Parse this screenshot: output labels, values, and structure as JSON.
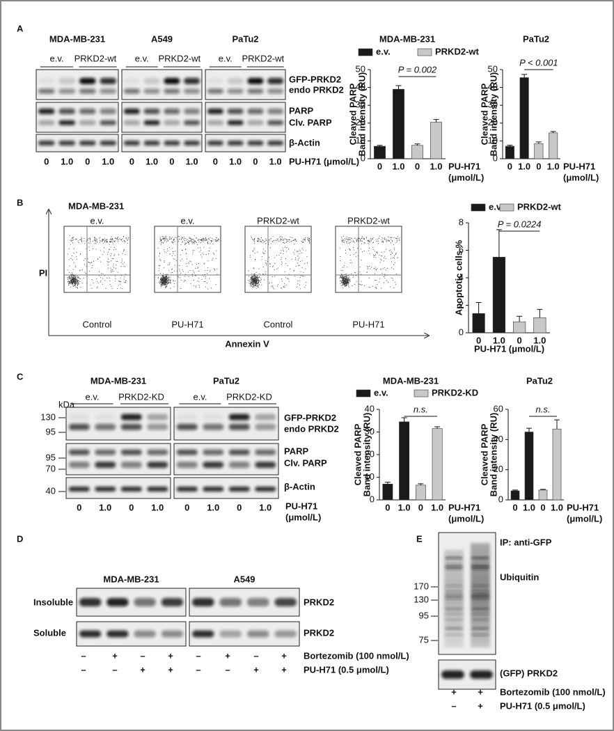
{
  "panels": {
    "A": {
      "label": "A",
      "cell_lines": [
        "MDA-MB-231",
        "A549",
        "PaTu2"
      ],
      "groups": [
        "e.v.",
        "PRKD2-wt"
      ],
      "bands": [
        "GFP-PRKD2",
        "endo PRKD2",
        "PARP",
        "Clv. PARP",
        "β-Actin"
      ],
      "lanes": [
        "0",
        "1.0",
        "0",
        "1.0"
      ],
      "treatment": "PU-H71 (μmol/L)"
    },
    "B": {
      "label": "B",
      "cell_line": "MDA-MB-231",
      "headers": [
        "e.v.",
        "e.v.",
        "PRKD2-wt",
        "PRKD2-wt"
      ],
      "conditions": [
        "Control",
        "PU-H71",
        "Control",
        "PU-H71"
      ],
      "y_axis": "PI",
      "x_axis": "Annexin V"
    },
    "C": {
      "label": "C",
      "cell_lines": [
        "MDA-MB-231",
        "PaTu2"
      ],
      "groups": [
        "e.v.",
        "PRKD2-KD"
      ],
      "kda": "kDa",
      "markers": [
        "130",
        "95",
        "95",
        "70",
        "40"
      ],
      "bands": [
        "GFP-PRKD2",
        "endo PRKD2",
        "PARP",
        "Clv. PARP",
        "β-Actin"
      ],
      "lanes": [
        "0",
        "1.0",
        "0",
        "1.0"
      ],
      "treatment": [
        "PU-H71",
        "(μmol/L)"
      ]
    },
    "D": {
      "label": "D",
      "cell_lines": [
        "MDA-MB-231",
        "A549"
      ],
      "fractions": [
        "Insoluble",
        "Soluble"
      ],
      "band": "PRKD2",
      "bortezomib": [
        "–",
        "+",
        "–",
        "+",
        "–",
        "+",
        "–",
        "+"
      ],
      "pu_h71": [
        "–",
        "–",
        "+",
        "+",
        "–",
        "–",
        "+",
        "+"
      ],
      "treatments": [
        "Bortezomib (100 nmol/L)",
        "PU-H71 (0.5 μmol/L)"
      ]
    },
    "E": {
      "label": "E",
      "markers": [
        "170",
        "130",
        "95",
        "75"
      ],
      "ip": "IP: anti-GFP",
      "blot": "Ubiquitin",
      "band": "(GFP) PRKD2",
      "bortezomib": [
        "+",
        "+"
      ],
      "pu_h71": [
        "–",
        "+"
      ],
      "treatments": [
        "Bortezomib (100 nmol/L)",
        "PU-H71 (0.5 μmol/L)"
      ]
    }
  },
  "chart_data": [
    {
      "type": "bar",
      "title": "MDA-MB-231",
      "categories": [
        "0",
        "1.0",
        "0",
        "1.0"
      ],
      "series": [
        {
          "name": "e.v.",
          "color": "#1a1a1a",
          "values": [
            7,
            39,
            null,
            null
          ],
          "errors": [
            0.5,
            2,
            null,
            null
          ]
        },
        {
          "name": "PRKD2-wt",
          "color": "#c8c8c8",
          "values": [
            null,
            null,
            7.5,
            20.5
          ],
          "errors": [
            null,
            null,
            0.8,
            1.5
          ]
        }
      ],
      "ylim": [
        0,
        50
      ],
      "yticks": [
        0,
        10,
        20,
        30,
        40,
        50
      ],
      "y_label": [
        "Cleaved PARP",
        "Band intensity (RU)"
      ],
      "x_label": [
        "PU-H71",
        "(μmol/L)"
      ],
      "annotation": "P = 0.002"
    },
    {
      "type": "bar",
      "title": "PaTu2",
      "categories": [
        "0",
        "1.0",
        "0",
        "1.0"
      ],
      "series": [
        {
          "color": "#1a1a1a",
          "values": [
            7,
            45.5,
            null,
            null
          ],
          "errors": [
            0.6,
            1.8,
            null,
            null
          ]
        },
        {
          "color": "#c8c8c8",
          "values": [
            null,
            null,
            8.5,
            14.5
          ],
          "errors": [
            null,
            null,
            0.9,
            0.8
          ]
        }
      ],
      "ylim": [
        0,
        50
      ],
      "yticks": [
        0,
        10,
        20,
        30,
        40,
        50
      ],
      "y_label": [
        "Cleaved PARP",
        "Band intensity (RU)"
      ],
      "x_label": [
        "PU-H71",
        "(μmol/L)"
      ],
      "annotation": "P < 0.001"
    },
    {
      "type": "bar",
      "categories": [
        "0",
        "1.0",
        "0",
        "1.0"
      ],
      "series": [
        {
          "name": "e.v.",
          "color": "#1a1a1a",
          "values": [
            1.4,
            5.5,
            null,
            null
          ],
          "errors": [
            0.8,
            2,
            null,
            null
          ]
        },
        {
          "name": "PRKD2-wt",
          "color": "#c8c8c8",
          "values": [
            null,
            null,
            0.8,
            1.1
          ],
          "errors": [
            null,
            null,
            0.4,
            0.6
          ]
        }
      ],
      "ylim": [
        0,
        8
      ],
      "yticks": [
        0,
        2,
        4,
        6,
        8
      ],
      "y_label": [
        "Apoptotic cells %"
      ],
      "x_label": [
        "PU-H71 (μmol/L)"
      ],
      "annotation": "P = 0.0224"
    },
    {
      "type": "bar",
      "title": "MDA-MB-231",
      "categories": [
        "0",
        "1.0",
        "0",
        "1.0"
      ],
      "series": [
        {
          "name": "e.v.",
          "color": "#1a1a1a",
          "values": [
            7,
            34.5,
            null,
            null
          ],
          "errors": [
            0.8,
            1.8,
            null,
            null
          ]
        },
        {
          "name": "PRKD2-KD",
          "color": "#c8c8c8",
          "values": [
            null,
            null,
            6.5,
            31.5
          ],
          "errors": [
            null,
            null,
            0.6,
            0.8
          ]
        }
      ],
      "ylim": [
        0,
        40
      ],
      "yticks": [
        0,
        10,
        20,
        30,
        40
      ],
      "y_label": [
        "Cleaved PARP",
        "Band intensity (RU)"
      ],
      "x_label": [
        "PU-H71",
        "(μmol/L)"
      ],
      "annotation": "n.s."
    },
    {
      "type": "bar",
      "title": "PaTu2",
      "categories": [
        "0",
        "1.0",
        "0",
        "1.0"
      ],
      "series": [
        {
          "color": "#1a1a1a",
          "values": [
            6,
            45,
            null,
            null
          ],
          "errors": [
            0.5,
            2.5,
            null,
            null
          ]
        },
        {
          "color": "#c8c8c8",
          "values": [
            null,
            null,
            6.5,
            47
          ],
          "errors": [
            null,
            null,
            0.5,
            6
          ]
        }
      ],
      "ylim": [
        0,
        60
      ],
      "yticks": [
        0,
        20,
        40,
        60
      ],
      "y_label": [
        "Cleaved PARP",
        "Band intensity (RU)"
      ],
      "x_label": [
        "PU-H71",
        "(μmol/L)"
      ],
      "annotation": "n.s."
    }
  ]
}
